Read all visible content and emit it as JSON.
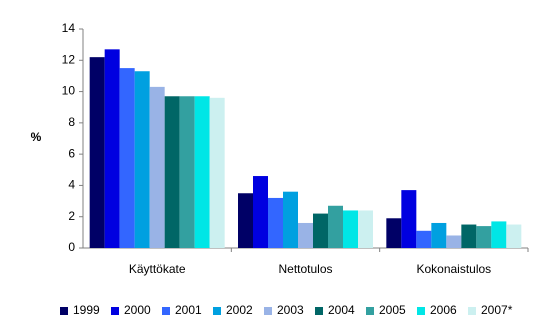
{
  "chart_data": {
    "type": "bar",
    "y_label": "%",
    "categories": [
      "Käyttökate",
      "Nettotulos",
      "Kokonaistulos"
    ],
    "series": [
      {
        "name": "1999",
        "color": "#000066",
        "values": [
          12.2,
          3.5,
          1.9
        ]
      },
      {
        "name": "2000",
        "color": "#0000e0",
        "values": [
          12.7,
          4.6,
          3.7
        ]
      },
      {
        "name": "2001",
        "color": "#3366ff",
        "values": [
          11.5,
          3.2,
          1.1
        ]
      },
      {
        "name": "2002",
        "color": "#00a0e0",
        "values": [
          11.3,
          3.6,
          1.6
        ]
      },
      {
        "name": "2003",
        "color": "#99b3e6",
        "values": [
          10.3,
          1.6,
          0.8
        ]
      },
      {
        "name": "2004",
        "color": "#006666",
        "values": [
          9.7,
          2.2,
          1.5
        ]
      },
      {
        "name": "2005",
        "color": "#33a0a0",
        "values": [
          9.7,
          2.7,
          1.4
        ]
      },
      {
        "name": "2006",
        "color": "#00e6e6",
        "values": [
          9.7,
          2.4,
          1.7
        ]
      },
      {
        "name": "2007*",
        "color": "#ccf0f0",
        "values": [
          9.6,
          2.4,
          1.5
        ]
      }
    ],
    "ylim": [
      0,
      14
    ],
    "yticks": [
      0,
      2,
      4,
      6,
      8,
      10,
      12,
      14
    ],
    "grid": false,
    "legend": "bottom"
  }
}
